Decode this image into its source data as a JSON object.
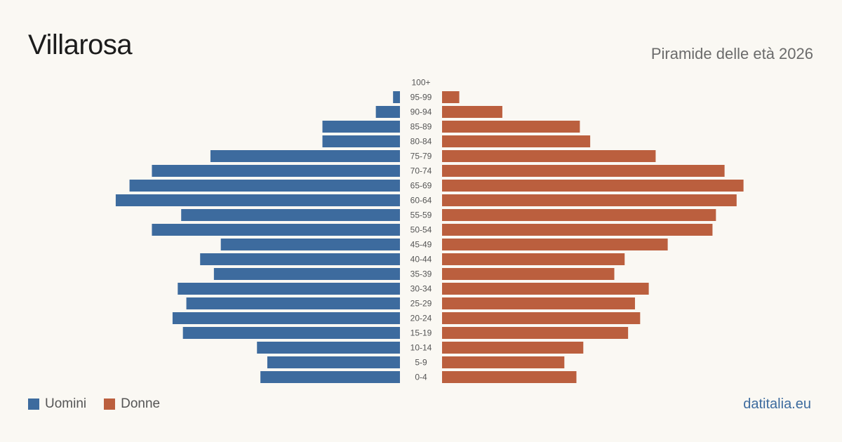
{
  "header": {
    "title": "Villarosa",
    "subtitle": "Piramide delle età 2026"
  },
  "legend": {
    "men_label": "Uomini",
    "women_label": "Donne"
  },
  "source": "datitalia.eu",
  "colors": {
    "men": "#3d6b9e",
    "women": "#bb5f3e",
    "background": "#faf8f3",
    "source_text": "#3d6b9e"
  },
  "chart_data": {
    "type": "bar",
    "orientation": "horizontal-pyramid",
    "categories": [
      "100+",
      "95-99",
      "90-94",
      "85-89",
      "80-84",
      "75-79",
      "70-74",
      "65-69",
      "60-64",
      "55-59",
      "50-54",
      "45-49",
      "40-44",
      "35-39",
      "30-34",
      "25-29",
      "20-24",
      "15-19",
      "10-14",
      "5-9",
      "0-4"
    ],
    "series": [
      {
        "name": "Uomini",
        "values": [
          0,
          4,
          14,
          45,
          45,
          110,
          144,
          157,
          165,
          127,
          144,
          104,
          116,
          108,
          129,
          124,
          132,
          126,
          83,
          77,
          81
        ]
      },
      {
        "name": "Donne",
        "values": [
          0,
          10,
          35,
          80,
          86,
          124,
          164,
          175,
          171,
          159,
          157,
          131,
          106,
          100,
          120,
          112,
          115,
          108,
          82,
          71,
          78
        ]
      }
    ],
    "grid": false,
    "legend_position": "bottom-left"
  }
}
